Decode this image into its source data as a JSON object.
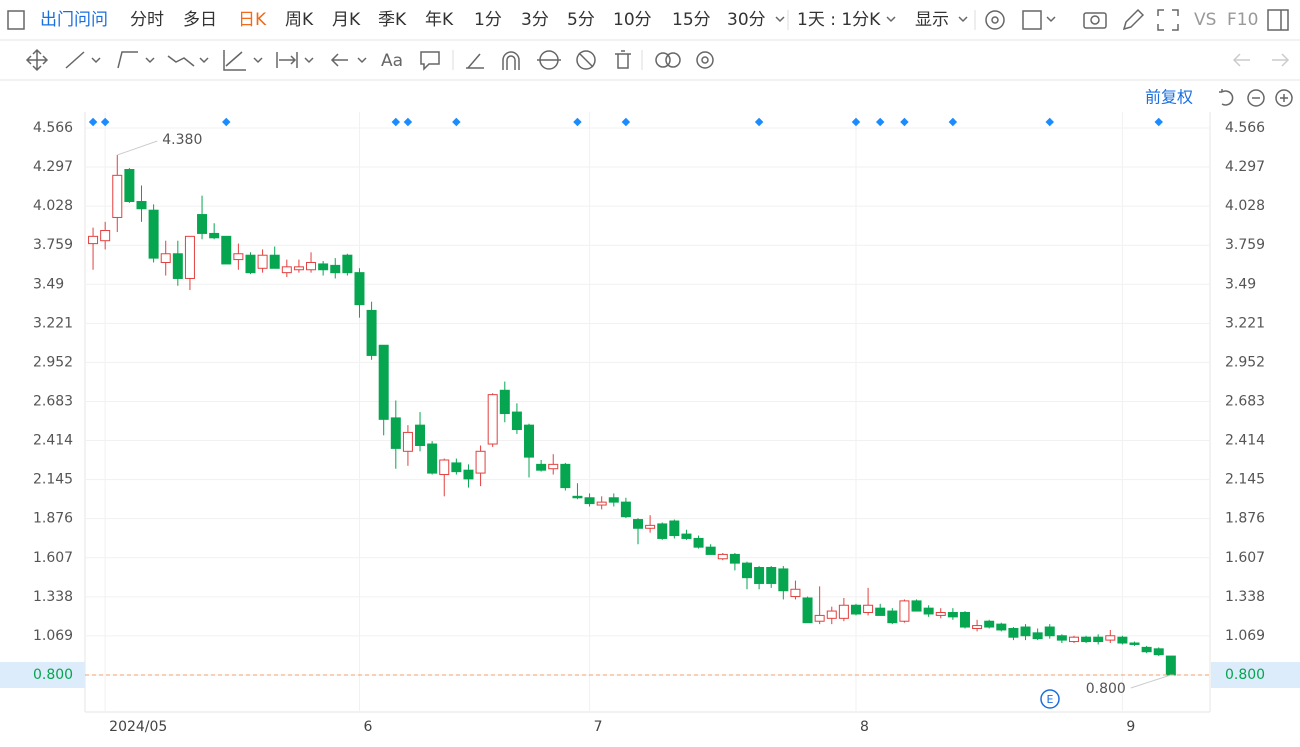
{
  "toolbar": {
    "stock": "出门问问",
    "periods": [
      "分时",
      "多日",
      "日K",
      "周K",
      "月K",
      "季K",
      "年K",
      "1分",
      "3分",
      "5分",
      "10分",
      "15分",
      "30分"
    ],
    "active": "日K",
    "interval": "1天 : 1分K",
    "display": "显示",
    "vs": "VS",
    "f10": "F10",
    "draw_text": "Aa",
    "adjust": "前复权"
  },
  "chart_data": {
    "type": "candlestick",
    "up_color": "#e2403f",
    "down_color": "#06a550",
    "categories": [
      null,
      "2024/05",
      null,
      null,
      null,
      null,
      null,
      null,
      null,
      null,
      null,
      null,
      null,
      null,
      null,
      null,
      null,
      null,
      null,
      null,
      null,
      null,
      "6",
      null,
      null,
      null,
      null,
      null,
      null,
      null,
      null,
      null,
      null,
      null,
      null,
      null,
      null,
      null,
      null,
      null,
      null,
      "7",
      null,
      null,
      null,
      null,
      null,
      null,
      null,
      null,
      null,
      null,
      null,
      null,
      null,
      null,
      null,
      null,
      null,
      null,
      null,
      null,
      null,
      "8",
      null,
      null,
      null,
      null,
      null,
      null,
      null,
      null,
      null,
      null,
      null,
      null,
      null,
      null,
      null,
      null,
      null,
      null,
      null,
      null,
      null,
      "9",
      null,
      null,
      null,
      null
    ],
    "open": [
      3.77,
      3.79,
      3.95,
      4.28,
      4.06,
      4.0,
      3.64,
      3.7,
      3.53,
      3.97,
      3.84,
      3.82,
      3.66,
      3.69,
      3.6,
      3.69,
      3.57,
      3.59,
      3.59,
      3.63,
      3.62,
      3.69,
      3.57,
      3.31,
      3.07,
      2.57,
      2.34,
      2.52,
      2.39,
      2.18,
      2.26,
      2.21,
      2.19,
      2.39,
      2.76,
      2.61,
      2.52,
      2.25,
      2.22,
      2.25,
      2.03,
      2.02,
      1.97,
      2.02,
      1.99,
      1.87,
      1.81,
      1.84,
      1.86,
      1.77,
      1.74,
      1.68,
      1.6,
      1.63,
      1.57,
      1.54,
      1.54,
      1.53,
      1.34,
      1.33,
      1.17,
      1.19,
      1.19,
      1.28,
      1.23,
      1.26,
      1.24,
      1.17,
      1.31,
      1.26,
      1.21,
      1.23,
      1.23,
      1.12,
      1.17,
      1.15,
      1.12,
      1.13,
      1.09,
      1.13,
      1.07,
      1.03,
      1.06,
      1.06,
      1.04,
      1.06,
      1.02,
      0.99,
      0.98,
      0.93
    ],
    "high": [
      3.88,
      3.92,
      4.38,
      4.29,
      4.17,
      4.04,
      3.79,
      3.79,
      3.82,
      4.1,
      3.91,
      3.82,
      3.77,
      3.71,
      3.73,
      3.75,
      3.66,
      3.66,
      3.71,
      3.65,
      3.67,
      3.7,
      3.6,
      3.37,
      3.07,
      2.69,
      2.52,
      2.61,
      2.41,
      2.29,
      2.29,
      2.25,
      2.38,
      2.74,
      2.82,
      2.67,
      2.53,
      2.28,
      2.32,
      2.26,
      2.12,
      2.05,
      2.03,
      2.05,
      2.02,
      1.88,
      1.9,
      1.85,
      1.87,
      1.8,
      1.76,
      1.7,
      1.64,
      1.64,
      1.58,
      1.55,
      1.55,
      1.55,
      1.45,
      1.34,
      1.41,
      1.27,
      1.33,
      1.29,
      1.4,
      1.29,
      1.26,
      1.32,
      1.32,
      1.28,
      1.26,
      1.26,
      1.24,
      1.18,
      1.18,
      1.16,
      1.13,
      1.15,
      1.12,
      1.15,
      1.08,
      1.07,
      1.07,
      1.08,
      1.11,
      1.07,
      1.03,
      1.0,
      0.99,
      0.93
    ],
    "low": [
      3.59,
      3.73,
      3.85,
      4.05,
      3.92,
      3.64,
      3.55,
      3.48,
      3.45,
      3.8,
      3.8,
      3.63,
      3.59,
      3.56,
      3.57,
      3.6,
      3.54,
      3.57,
      3.57,
      3.55,
      3.53,
      3.55,
      3.26,
      2.97,
      2.45,
      2.22,
      2.24,
      2.34,
      2.18,
      2.03,
      2.18,
      2.09,
      2.1,
      2.37,
      2.54,
      2.46,
      2.16,
      2.2,
      2.18,
      2.07,
      2.01,
      1.96,
      1.94,
      1.96,
      1.88,
      1.7,
      1.78,
      1.73,
      1.74,
      1.73,
      1.67,
      1.63,
      1.59,
      1.52,
      1.39,
      1.39,
      1.4,
      1.32,
      1.32,
      1.16,
      1.15,
      1.15,
      1.17,
      1.21,
      1.21,
      1.21,
      1.15,
      1.16,
      1.24,
      1.2,
      1.19,
      1.18,
      1.12,
      1.1,
      1.12,
      1.1,
      1.04,
      1.04,
      1.04,
      1.05,
      1.02,
      1.02,
      1.02,
      1.01,
      1.02,
      1.01,
      1.0,
      0.95,
      0.93,
      0.8
    ],
    "close": [
      3.82,
      3.86,
      4.24,
      4.06,
      4.01,
      3.67,
      3.7,
      3.53,
      3.82,
      3.84,
      3.81,
      3.63,
      3.7,
      3.57,
      3.69,
      3.6,
      3.61,
      3.61,
      3.64,
      3.59,
      3.57,
      3.57,
      3.35,
      3.0,
      2.56,
      2.36,
      2.47,
      2.38,
      2.19,
      2.28,
      2.2,
      2.15,
      2.34,
      2.73,
      2.6,
      2.49,
      2.3,
      2.21,
      2.25,
      2.09,
      2.02,
      1.98,
      1.99,
      1.99,
      1.89,
      1.81,
      1.83,
      1.74,
      1.76,
      1.74,
      1.68,
      1.63,
      1.63,
      1.57,
      1.47,
      1.43,
      1.43,
      1.38,
      1.39,
      1.16,
      1.21,
      1.24,
      1.28,
      1.22,
      1.28,
      1.21,
      1.16,
      1.31,
      1.24,
      1.22,
      1.23,
      1.2,
      1.13,
      1.14,
      1.13,
      1.11,
      1.06,
      1.07,
      1.05,
      1.07,
      1.04,
      1.06,
      1.03,
      1.03,
      1.07,
      1.02,
      1.01,
      0.96,
      0.94,
      0.8
    ],
    "ylim": [
      0.545,
      4.862
    ],
    "yticks": [
      4.566,
      4.297,
      4.028,
      3.759,
      3.49,
      3.221,
      2.952,
      2.683,
      2.414,
      2.145,
      1.876,
      1.607,
      1.338,
      1.069,
      {
        "value": 0.8,
        "label": "0.800"
      }
    ],
    "grid": true,
    "last_price": {
      "value": 0.8,
      "label": "0.800"
    },
    "max_label": "4.380",
    "min_label": "0.800"
  }
}
